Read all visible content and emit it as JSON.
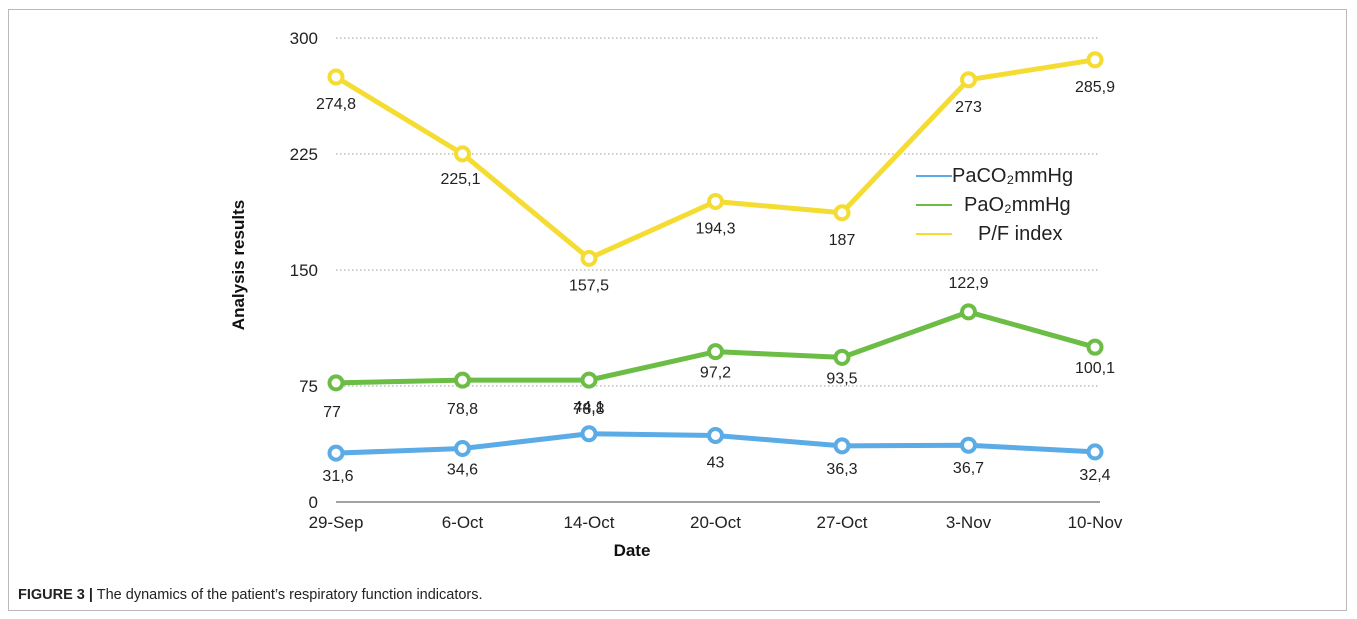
{
  "caption": {
    "label": "FIGURE 3 |",
    "text": "The dynamics of the patient’s respiratory function indicators."
  },
  "chart_data": {
    "type": "line",
    "xlabel": "Date",
    "ylabel": "Analysis results",
    "ylim": [
      0,
      300
    ],
    "yticks": [
      0,
      75,
      150,
      225,
      300
    ],
    "grid": "horizontal dotted",
    "legend_position": "right",
    "categories": [
      "29-Sep",
      "6-Oct",
      "14-Oct",
      "20-Oct",
      "27-Oct",
      "3-Nov",
      "10-Nov"
    ],
    "series": [
      {
        "name": "PaCO₂mmHg",
        "color": "#5aabe6",
        "values": [
          31.6,
          34.6,
          44.1,
          43,
          36.3,
          36.7,
          32.4
        ],
        "labels": [
          "31,6",
          "34,6",
          "44,1",
          "43",
          "36,3",
          "36,7",
          "32,4"
        ]
      },
      {
        "name": "PaO₂mmHg",
        "color": "#6cbd45",
        "values": [
          77,
          78.8,
          78.8,
          97.2,
          93.5,
          122.9,
          100.1
        ],
        "labels": [
          "77",
          "78,8",
          "78,8",
          "97,2",
          "93,5",
          "122,9",
          "100,1"
        ]
      },
      {
        "name": "P/F index",
        "color": "#f5dc33",
        "values": [
          274.8,
          225.1,
          157.5,
          194.3,
          187,
          273,
          285.9
        ],
        "labels": [
          "274,8",
          "225,1",
          "157,5",
          "194,3",
          "187",
          "273",
          "285,9"
        ]
      }
    ]
  }
}
